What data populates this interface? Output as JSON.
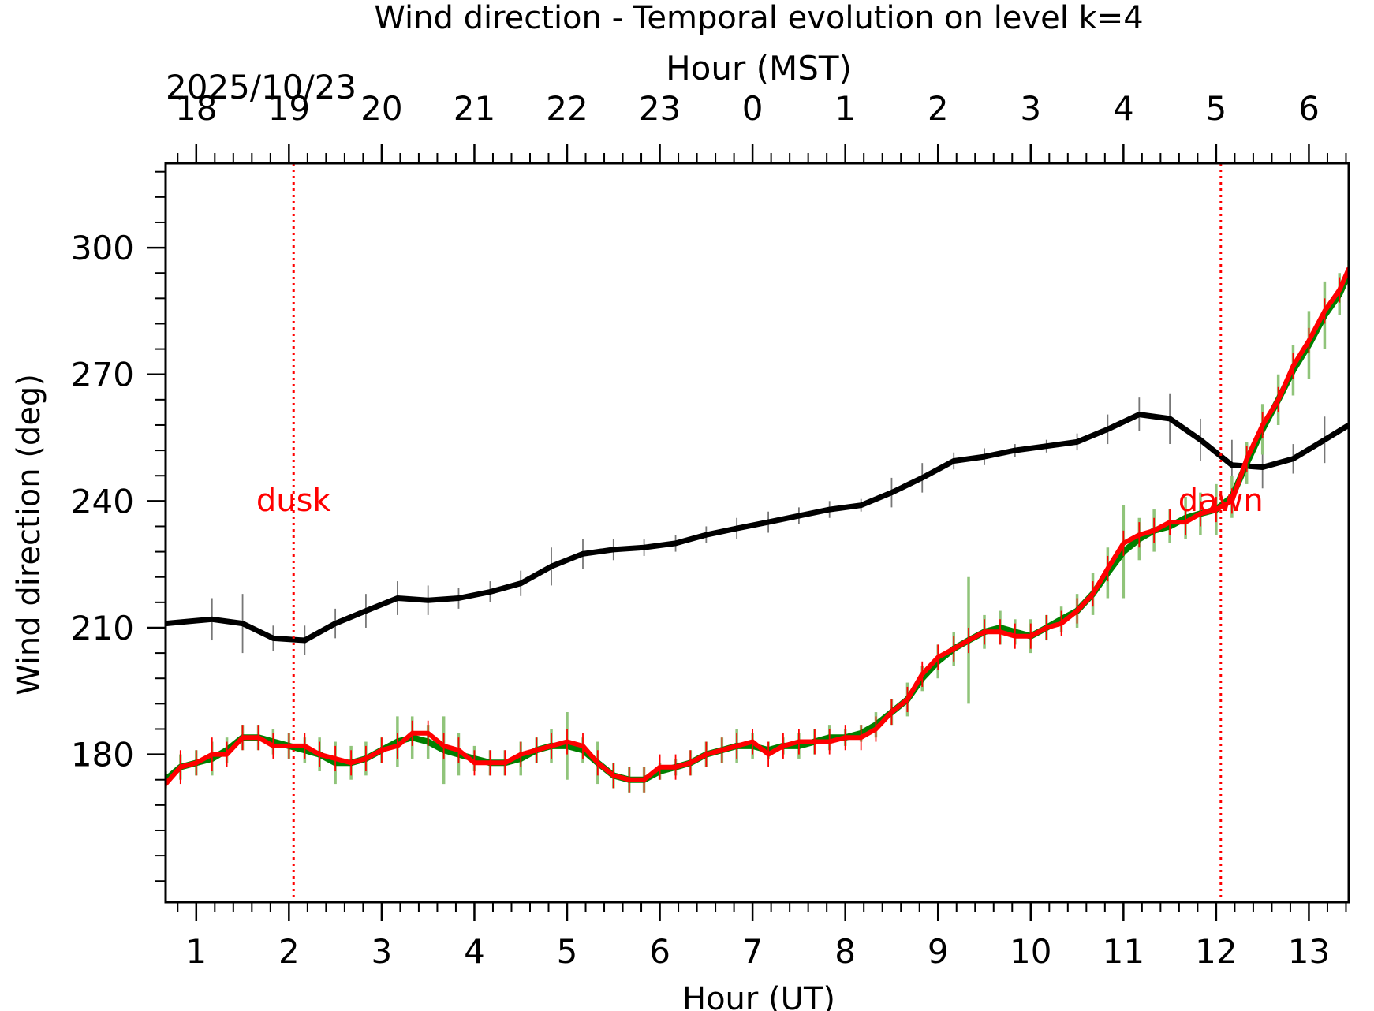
{
  "chart_data": {
    "type": "line",
    "title": "Wind direction - Temporal evolution on level k=4",
    "xlabel": "Hour (UT)",
    "x2label": "Hour (MST)",
    "ylabel": "Wind direction (deg)",
    "date_label": "2025/10/23",
    "xlim": [
      0.67,
      13.43
    ],
    "ylim": [
      145,
      320
    ],
    "x_ticks": [
      1,
      2,
      3,
      4,
      5,
      6,
      7,
      8,
      9,
      10,
      11,
      12,
      13
    ],
    "x_tick_labels": [
      "1",
      "2",
      "3",
      "4",
      "5",
      "6",
      "7",
      "8",
      "9",
      "10",
      "11",
      "12",
      "13"
    ],
    "x2_ticks": [
      1,
      2,
      3,
      4,
      5,
      6,
      7,
      8,
      9,
      10,
      11,
      12,
      13
    ],
    "x2_tick_labels": [
      "18",
      "19",
      "20",
      "21",
      "22",
      "23",
      "0",
      "1",
      "2",
      "3",
      "4",
      "5",
      "6"
    ],
    "y_ticks": [
      180,
      210,
      240,
      270,
      300
    ],
    "y_tick_labels": [
      "180",
      "210",
      "240",
      "270",
      "300"
    ],
    "grid": false,
    "annotations": [
      {
        "text": "dusk",
        "x": 2.05,
        "y": 238,
        "color": "#ff0000"
      },
      {
        "text": "dawn",
        "x": 12.05,
        "y": 238,
        "color": "#ff0000"
      }
    ],
    "vlines": [
      {
        "x": 2.05,
        "color": "#ff0000",
        "style": "dotted"
      },
      {
        "x": 12.05,
        "color": "#ff0000",
        "style": "dotted"
      }
    ],
    "series": [
      {
        "color": "#000000",
        "errcolor": "#777777",
        "x": [
          0.67,
          1.17,
          1.5,
          1.83,
          2.17,
          2.5,
          2.83,
          3.17,
          3.5,
          3.83,
          4.17,
          4.5,
          4.83,
          5.17,
          5.5,
          5.83,
          6.17,
          6.5,
          6.83,
          7.17,
          7.5,
          7.83,
          8.17,
          8.5,
          8.83,
          9.17,
          9.5,
          9.83,
          10.17,
          10.5,
          10.83,
          11.17,
          11.5,
          11.83,
          12.17,
          12.5,
          12.83,
          13.17,
          13.43
        ],
        "y": [
          211,
          212,
          211,
          207.5,
          207,
          211,
          214,
          217,
          216.5,
          217,
          218.5,
          220.5,
          224.5,
          227.5,
          228.5,
          229,
          230,
          232,
          233.5,
          235,
          236.5,
          238,
          239,
          242,
          245.5,
          249.5,
          250.5,
          252,
          253,
          254,
          257,
          260.5,
          259.5,
          254.5,
          248.5,
          248,
          250,
          254.5,
          258
        ],
        "err": [
          5,
          5,
          7,
          3,
          3.5,
          3.5,
          4,
          4,
          3.5,
          2.5,
          2.5,
          3,
          4.5,
          3.5,
          2.5,
          2,
          2,
          2,
          2.5,
          2.5,
          2,
          2,
          1.5,
          3.5,
          3.5,
          2,
          2,
          1.5,
          1.5,
          2,
          3.5,
          4,
          6,
          5,
          6,
          5,
          3.5,
          5.5,
          0
        ]
      },
      {
        "color": "#008000",
        "errcolor": "#90c47a",
        "x": [
          0.67,
          0.83,
          1.0,
          1.17,
          1.33,
          1.5,
          1.67,
          1.83,
          2.0,
          2.17,
          2.33,
          2.5,
          2.67,
          2.83,
          3.0,
          3.17,
          3.33,
          3.5,
          3.67,
          3.83,
          4.0,
          4.17,
          4.33,
          4.5,
          4.67,
          4.83,
          5.0,
          5.17,
          5.33,
          5.5,
          5.67,
          5.83,
          6.0,
          6.17,
          6.33,
          6.5,
          6.67,
          6.83,
          7.0,
          7.17,
          7.33,
          7.5,
          7.67,
          7.83,
          8.0,
          8.17,
          8.33,
          8.5,
          8.67,
          8.83,
          9.0,
          9.17,
          9.33,
          9.5,
          9.67,
          9.83,
          10.0,
          10.17,
          10.33,
          10.5,
          10.67,
          10.83,
          11.0,
          11.17,
          11.33,
          11.5,
          11.67,
          11.83,
          12.0,
          12.17,
          12.33,
          12.5,
          12.67,
          12.83,
          13.0,
          13.17,
          13.33,
          13.43
        ],
        "y": [
          174,
          177,
          178,
          179,
          181,
          184,
          184,
          183,
          182,
          181,
          180,
          178,
          178,
          179,
          181,
          183,
          184,
          183,
          181,
          180,
          179,
          178,
          178,
          179,
          181,
          182,
          182,
          181,
          178,
          175,
          174,
          174,
          176,
          177,
          178,
          180,
          181,
          182,
          182,
          181,
          182,
          182,
          183,
          184,
          184,
          185,
          187,
          190,
          193,
          198,
          202,
          205,
          207,
          209,
          210,
          209,
          208,
          210,
          212,
          214,
          218,
          223,
          228,
          231,
          233,
          234,
          236,
          237,
          238,
          241,
          249,
          257,
          264,
          271,
          277,
          284,
          289,
          294
        ],
        "err": [
          2,
          3,
          3,
          4,
          3,
          3,
          3,
          3,
          3,
          3,
          4,
          5,
          4,
          4,
          3,
          6,
          5,
          4,
          8,
          5,
          3,
          3,
          3,
          4,
          3,
          4,
          8,
          3,
          5,
          3,
          3,
          3,
          2,
          2,
          3,
          3,
          3,
          4,
          3,
          2,
          2,
          3,
          3,
          3,
          2,
          2,
          3,
          3,
          4,
          3,
          4,
          4,
          15,
          4,
          4,
          3,
          4,
          3,
          3,
          4,
          5,
          6,
          11,
          5,
          5,
          4,
          5,
          5,
          6,
          5,
          5,
          6,
          6,
          6,
          8,
          8,
          5,
          3
        ]
      },
      {
        "color": "#ff0000",
        "errcolor": "#ff0000",
        "x": [
          0.67,
          0.83,
          1.0,
          1.17,
          1.33,
          1.5,
          1.67,
          1.83,
          2.0,
          2.17,
          2.33,
          2.5,
          2.67,
          2.83,
          3.0,
          3.17,
          3.33,
          3.5,
          3.67,
          3.83,
          4.0,
          4.17,
          4.33,
          4.5,
          4.67,
          4.83,
          5.0,
          5.17,
          5.33,
          5.5,
          5.67,
          5.83,
          6.0,
          6.17,
          6.33,
          6.5,
          6.67,
          6.83,
          7.0,
          7.17,
          7.33,
          7.5,
          7.67,
          7.83,
          8.0,
          8.17,
          8.33,
          8.5,
          8.67,
          8.83,
          9.0,
          9.17,
          9.33,
          9.5,
          9.67,
          9.83,
          10.0,
          10.17,
          10.33,
          10.5,
          10.67,
          10.83,
          11.0,
          11.17,
          11.33,
          11.5,
          11.67,
          11.83,
          12.0,
          12.17,
          12.33,
          12.5,
          12.67,
          12.83,
          13.0,
          13.17,
          13.33,
          13.43
        ],
        "y": [
          173,
          177,
          178,
          180,
          180,
          184,
          184,
          182,
          182,
          182,
          180,
          179,
          178,
          179,
          181,
          182,
          185,
          185,
          182,
          181,
          178,
          178,
          178,
          180,
          181,
          182,
          183,
          182,
          178,
          175,
          174,
          174,
          177,
          177,
          178,
          180,
          181,
          182,
          183,
          180,
          182,
          183,
          183,
          183,
          184,
          184,
          186,
          190,
          193,
          199,
          203,
          205,
          207,
          209,
          209,
          208,
          208,
          210,
          211,
          214,
          218,
          224,
          230,
          232,
          233,
          235,
          235,
          237,
          238,
          240,
          250,
          258,
          264,
          272,
          278,
          285,
          290,
          295
        ],
        "err": [
          5,
          4,
          3,
          4,
          3,
          3,
          3,
          3,
          3,
          3,
          3,
          3,
          3,
          3,
          3,
          3,
          3,
          3,
          3,
          3,
          3,
          3,
          3,
          3,
          3,
          3,
          3,
          3,
          3,
          3,
          3,
          3,
          3,
          3,
          3,
          3,
          3,
          3,
          3,
          3,
          3,
          3,
          3,
          3,
          3,
          3,
          3,
          3,
          3,
          3,
          3,
          3,
          3,
          3,
          3,
          3,
          3,
          3,
          3,
          3,
          3,
          3,
          3,
          3,
          3,
          3,
          3,
          3,
          3,
          3,
          3,
          3,
          3,
          3,
          3,
          3,
          3,
          3
        ]
      }
    ]
  }
}
